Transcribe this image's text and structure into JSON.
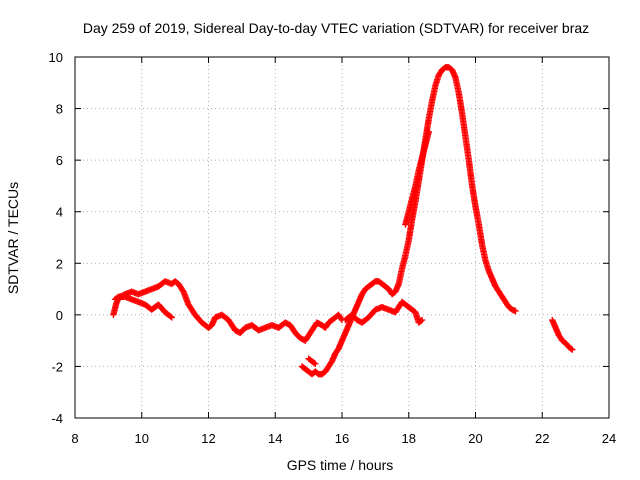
{
  "chart_data": {
    "type": "scatter",
    "title": "Day 259 of 2019, Sidereal Day-to-day VTEC variation (SDTVAR) for receiver braz",
    "xlabel": "GPS time / hours",
    "ylabel": "SDTVAR / TECUs",
    "xlim": [
      8,
      24
    ],
    "ylim": [
      -4,
      10
    ],
    "xticks": [
      "8",
      "10",
      "12",
      "14",
      "16",
      "18",
      "20",
      "22",
      "24"
    ],
    "yticks": [
      "-4",
      "-2",
      "0",
      "2",
      "4",
      "6",
      "8",
      "10"
    ],
    "grid": true,
    "marker": "+",
    "colors": {
      "series": "#ff0000",
      "frame": "#000000",
      "grid": "#b0b0b0"
    },
    "series": [
      {
        "name": "SDTVAR",
        "segments": [
          {
            "x": [
              9.15,
              9.25,
              9.35,
              9.5,
              9.7,
              9.9,
              10.1,
              10.3,
              10.5,
              10.7,
              10.9,
              11.0,
              11.1,
              11.25,
              11.4,
              11.6,
              11.8,
              12.0,
              12.1,
              12.2,
              12.4,
              12.6,
              12.8,
              12.95,
              13.1,
              13.3,
              13.5,
              13.7,
              13.9,
              14.1,
              14.3,
              14.45,
              14.6,
              14.75,
              14.9,
              15.0,
              15.1,
              15.25,
              15.4,
              15.5,
              15.6,
              15.7,
              15.8,
              15.9,
              16.0
            ],
            "y": [
              0.0,
              0.5,
              0.7,
              0.8,
              0.9,
              0.8,
              0.9,
              1.0,
              1.1,
              1.3,
              1.2,
              1.3,
              1.2,
              0.9,
              0.4,
              0.0,
              -0.3,
              -0.5,
              -0.4,
              -0.1,
              0.0,
              -0.2,
              -0.6,
              -0.7,
              -0.5,
              -0.4,
              -0.6,
              -0.5,
              -0.4,
              -0.5,
              -0.3,
              -0.4,
              -0.7,
              -0.9,
              -1.0,
              -0.8,
              -0.6,
              -0.3,
              -0.4,
              -0.5,
              -0.3,
              -0.2,
              -0.1,
              0.0,
              -0.2
            ]
          },
          {
            "x": [
              9.2,
              9.3,
              9.5,
              9.7,
              9.9,
              10.1,
              10.3,
              10.5,
              10.7,
              10.9
            ],
            "y": [
              0.6,
              0.7,
              0.7,
              0.6,
              0.5,
              0.4,
              0.2,
              0.4,
              0.1,
              -0.1
            ]
          },
          {
            "x": [
              16.1,
              16.2,
              16.3,
              16.45,
              16.6,
              16.8,
              17.0,
              17.2,
              17.4,
              17.6,
              17.8,
              18.0,
              18.2,
              18.3,
              18.4
            ],
            "y": [
              -0.2,
              -0.1,
              0.0,
              -0.2,
              -0.3,
              -0.1,
              0.2,
              0.3,
              0.2,
              0.1,
              0.5,
              0.3,
              0.1,
              -0.3,
              -0.2
            ]
          },
          {
            "x": [
              14.8,
              14.9,
              15.0,
              15.1,
              15.2,
              15.3,
              15.4,
              15.5,
              15.6,
              15.7,
              15.8,
              15.9,
              16.0,
              16.1,
              16.2,
              16.3,
              16.4,
              16.5,
              16.6,
              16.7,
              16.8,
              16.9,
              17.0,
              17.1,
              17.2,
              17.3,
              17.4,
              17.5,
              17.6,
              17.7,
              17.8,
              17.9,
              18.0,
              18.1,
              18.2,
              18.3,
              18.4,
              18.5,
              18.6,
              18.7,
              18.8,
              18.9,
              19.0,
              19.1,
              19.2,
              19.3,
              19.4,
              19.5,
              19.6,
              19.7,
              19.8,
              19.9,
              20.0,
              20.1,
              20.2,
              20.3,
              20.4,
              20.5,
              20.6,
              20.7,
              20.8,
              20.9,
              21.0,
              21.1,
              21.2
            ],
            "y": [
              -2.0,
              -2.1,
              -2.2,
              -2.3,
              -2.2,
              -2.3,
              -2.3,
              -2.2,
              -2.0,
              -1.8,
              -1.5,
              -1.3,
              -1.0,
              -0.7,
              -0.4,
              -0.1,
              0.2,
              0.5,
              0.8,
              1.0,
              1.1,
              1.2,
              1.3,
              1.3,
              1.2,
              1.1,
              1.0,
              0.8,
              0.9,
              1.2,
              1.8,
              2.3,
              2.9,
              3.7,
              4.4,
              5.2,
              6.0,
              6.8,
              7.6,
              8.3,
              8.9,
              9.3,
              9.5,
              9.6,
              9.6,
              9.5,
              9.2,
              8.6,
              7.8,
              6.9,
              6.0,
              5.0,
              4.2,
              3.5,
              2.7,
              2.1,
              1.7,
              1.4,
              1.1,
              0.9,
              0.7,
              0.5,
              0.3,
              0.2,
              0.15
            ]
          },
          {
            "x": [
              15.0,
              15.2
            ],
            "y": [
              -1.7,
              -1.9
            ]
          },
          {
            "x": [
              17.9,
              18.0,
              18.1,
              18.2,
              18.3,
              18.4,
              18.5,
              18.6
            ],
            "y": [
              3.5,
              4.0,
              4.5,
              5.0,
              5.6,
              6.1,
              6.6,
              7.1
            ]
          },
          {
            "x": [
              22.3,
              22.4,
              22.5,
              22.6,
              22.7,
              22.8,
              22.9
            ],
            "y": [
              -0.2,
              -0.5,
              -0.8,
              -1.0,
              -1.1,
              -1.25,
              -1.35
            ]
          }
        ]
      }
    ]
  }
}
